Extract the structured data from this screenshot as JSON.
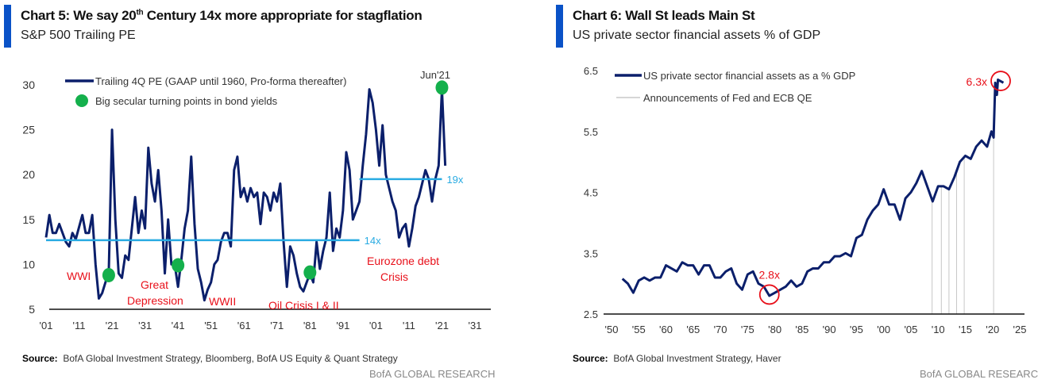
{
  "chart_data": [
    {
      "type": "line",
      "title_prefix": "Chart 5: We say 20",
      "title_sup": "th",
      "title_suffix": " Century 14x more appropriate for stagflation",
      "subtitle": "S&P 500 Trailing PE",
      "xlim": [
        1901,
        2031
      ],
      "ylim": [
        5,
        30
      ],
      "yticks": [
        5,
        10,
        15,
        20,
        25,
        30
      ],
      "xtick_labels": [
        "'01",
        "'11",
        "'21",
        "'31",
        "'41",
        "'51",
        "'61",
        "'71",
        "'81",
        "'91",
        "'01",
        "'11",
        "'21",
        "'31"
      ],
      "xtick_years": [
        1901,
        1911,
        1921,
        1931,
        1941,
        1951,
        1961,
        1971,
        1981,
        1991,
        2001,
        2011,
        2021,
        2031
      ],
      "legend": [
        "Trailing 4Q PE (GAAP until 1960, Pro-forma thereafter)",
        "Big secular turning points in bond yields"
      ],
      "legend_placement": "top-left",
      "colors": {
        "line": "#0b1f6b",
        "dots": "#14b04c",
        "ref": "#29abe2",
        "annot": "#e8101a"
      },
      "series": [
        {
          "x": [
            1901,
            1902,
            1903,
            1904,
            1905,
            1906,
            1907,
            1908,
            1909,
            1910,
            1912,
            1913,
            1914,
            1915,
            1916,
            1917,
            1918,
            1919,
            1920,
            1921,
            1922,
            1923,
            1924,
            1925,
            1926,
            1927,
            1928,
            1929,
            1930,
            1931,
            1932,
            1933,
            1934,
            1935,
            1936,
            1937,
            1938,
            1939,
            1940,
            1941,
            1942,
            1943,
            1944,
            1945,
            1946,
            1947,
            1948,
            1949,
            1950,
            1951,
            1952,
            1953,
            1954,
            1955,
            1956,
            1957,
            1958,
            1959,
            1960,
            1961,
            1962,
            1963,
            1964,
            1965,
            1966,
            1967,
            1968,
            1969,
            1970,
            1971,
            1972,
            1973,
            1974,
            1975,
            1976,
            1977,
            1978,
            1979,
            1980,
            1981,
            1982,
            1983,
            1984,
            1985,
            1986,
            1987,
            1988,
            1989,
            1990,
            1991,
            1992,
            1993,
            1994,
            1995,
            1996,
            1997,
            1998,
            1999,
            2000,
            2001,
            2002,
            2003,
            2004,
            2005,
            2006,
            2007,
            2008,
            2009,
            2010,
            2011,
            2012,
            2013,
            2014,
            2015,
            2016,
            2017,
            2018,
            2019,
            2020,
            2021,
            2022
          ],
          "y": [
            13,
            15.5,
            13.5,
            13.5,
            14.5,
            13.5,
            12.5,
            12,
            13.5,
            12.8,
            15.5,
            13.5,
            13.5,
            15.5,
            10,
            6.2,
            6.8,
            8,
            9,
            25,
            15,
            9,
            8.5,
            11,
            10.5,
            14,
            17.5,
            13.5,
            16,
            14,
            23,
            19,
            17,
            20.5,
            16,
            9,
            15,
            10,
            10,
            7.5,
            10.5,
            14,
            16,
            22,
            14.5,
            9.5,
            8,
            6,
            7.2,
            8,
            10,
            10.5,
            12.5,
            13.5,
            13.5,
            12,
            20.5,
            22,
            17.5,
            18.5,
            17,
            18.5,
            17.5,
            18,
            14.5,
            18,
            17.5,
            16,
            18,
            17,
            19,
            12.5,
            7.5,
            12,
            11,
            9,
            7.5,
            7,
            8,
            9,
            8,
            12.5,
            9.5,
            11.5,
            13,
            18,
            11.5,
            14,
            13,
            16,
            22.5,
            20.5,
            15,
            16,
            17,
            21,
            24.5,
            29.5,
            28,
            25,
            21,
            25.5,
            20,
            18.5,
            17,
            16,
            13,
            14,
            14.5,
            12,
            14,
            16.5,
            17.5,
            19,
            20.5,
            19.5,
            17,
            19.5,
            21,
            29.5,
            21
          ]
        }
      ],
      "turning_points": [
        {
          "x": 1920,
          "y": 8.8
        },
        {
          "x": 1941,
          "y": 9.9
        },
        {
          "x": 1981,
          "y": 9.1
        },
        {
          "x": 2021,
          "y": 29.7
        }
      ],
      "reference_lines": [
        {
          "label": "14x",
          "y": 12.7,
          "x_from": 1901,
          "x_to": 1996
        },
        {
          "label": "19x",
          "y": 19.5,
          "x_from": 1996,
          "x_to": 2021
        }
      ],
      "annotations": [
        "WWI",
        "Great",
        "Depression",
        "WWII",
        "Oil Crisis I &  II",
        "Eurozone debt",
        "Crisis",
        "Jun'21"
      ],
      "source_label": "Source:",
      "source": "BofA Global Investment Strategy, Bloomberg, BofA US Equity  & Quant Strategy",
      "brand": "BofA GLOBAL RESEARCH"
    },
    {
      "type": "line",
      "title": "Chart 6: Wall St leads Main St",
      "subtitle": "US private sector financial assets % of GDP",
      "xlim": [
        1950,
        2025
      ],
      "ylim": [
        2.5,
        6.5
      ],
      "yticks": [
        "2.5",
        "3.5",
        "4.5",
        "5.5",
        "6.5"
      ],
      "xtick_labels": [
        "'50",
        "'55",
        "'60",
        "'65",
        "'70",
        "'75",
        "'80",
        "'85",
        "'90",
        "'95",
        "'00",
        "'05",
        "'10",
        "'15",
        "'20",
        "'25"
      ],
      "legend": [
        "US private sector financial assets as a % GDP",
        "Announcements of Fed and ECB QE"
      ],
      "legend_placement": "top-left",
      "colors": {
        "line": "#0b1f6b",
        "qe": "#c8c8c8",
        "annot": "#e8101a"
      },
      "series": [
        {
          "x": [
            1952,
            1953,
            1954,
            1955,
            1956,
            1957,
            1958,
            1959,
            1960,
            1961,
            1962,
            1963,
            1964,
            1965,
            1966,
            1967,
            1968,
            1969,
            1970,
            1971,
            1972,
            1973,
            1974,
            1975,
            1976,
            1977,
            1978,
            1979,
            1980,
            1981,
            1982,
            1983,
            1984,
            1985,
            1986,
            1987,
            1988,
            1989,
            1990,
            1991,
            1992,
            1993,
            1994,
            1995,
            1996,
            1997,
            1998,
            1999,
            2000,
            2001,
            2002,
            2003,
            2004,
            2005,
            2006,
            2007,
            2008,
            2009,
            2010,
            2011,
            2012,
            2013,
            2014,
            2015,
            2016,
            2017,
            2018,
            2019,
            2019.8,
            2020.2,
            2020.5,
            2020.8,
            2021,
            2022
          ],
          "y": [
            3.08,
            3.0,
            2.85,
            3.05,
            3.1,
            3.05,
            3.1,
            3.1,
            3.3,
            3.25,
            3.2,
            3.35,
            3.3,
            3.3,
            3.15,
            3.3,
            3.3,
            3.1,
            3.1,
            3.2,
            3.25,
            3.0,
            2.9,
            3.15,
            3.2,
            3.0,
            2.95,
            2.8,
            2.85,
            2.9,
            2.95,
            3.05,
            2.95,
            3.0,
            3.2,
            3.25,
            3.25,
            3.35,
            3.35,
            3.45,
            3.45,
            3.5,
            3.45,
            3.75,
            3.8,
            4.05,
            4.2,
            4.3,
            4.55,
            4.3,
            4.3,
            4.05,
            4.4,
            4.5,
            4.65,
            4.85,
            4.6,
            4.35,
            4.6,
            4.6,
            4.55,
            4.75,
            5.0,
            5.1,
            5.05,
            5.25,
            5.35,
            5.25,
            5.5,
            5.4,
            6.3,
            6.1,
            6.35,
            6.3
          ]
        }
      ],
      "qe_announcements": [
        2008.9,
        2010.6,
        2012.0,
        2013.4,
        2014.8,
        2020.2
      ],
      "highlights": [
        {
          "label": "2.8x",
          "x": 1979,
          "y": 2.82
        },
        {
          "label": "6.3x",
          "x": 2021.5,
          "y": 6.33
        }
      ],
      "source_label": "Source:",
      "source": "BofA Global Investment Strategy, Haver",
      "brand": "BofA GLOBAL RESEARCH"
    }
  ]
}
